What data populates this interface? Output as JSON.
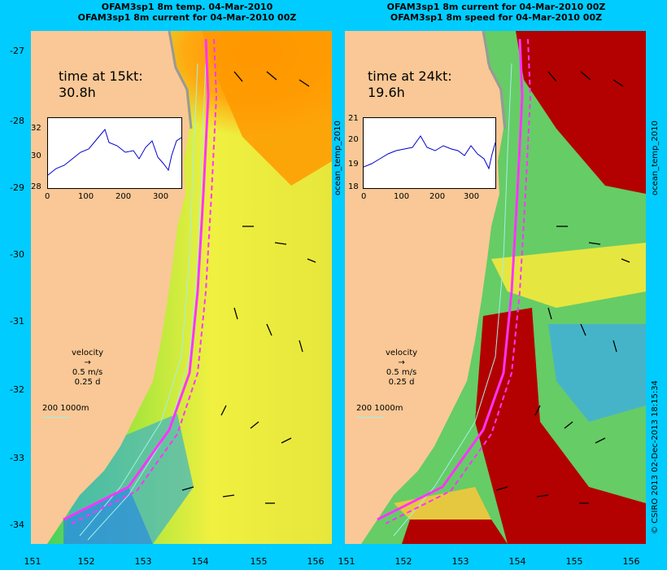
{
  "left": {
    "title_line1": "OFAM3sp1 8m temp. 04-Mar-2010",
    "title_line2": "OFAM3sp1 8m current for 04-Mar-2010 00Z",
    "time_label": "time at 15kt:",
    "time_value": "30.8h",
    "inset_y_ticks": [
      "32",
      "30",
      "28"
    ],
    "inset_x_ticks": [
      "0",
      "100",
      "200",
      "300"
    ],
    "velocity_label": "velocity",
    "velocity_speed": "0.5 m/s",
    "velocity_duration": "0.25 d",
    "depth_label": "200  1000m",
    "side_label": "ocean_temp_2010"
  },
  "right": {
    "title_line1": "OFAM3sp1 8m current for 04-Mar-2010 00Z",
    "title_line2": "OFAM3sp1 8m speed for 04-Mar-2010 00Z",
    "time_label": "time at 24kt:",
    "time_value": "19.6h",
    "inset_y_ticks": [
      "21",
      "20",
      "19",
      "18"
    ],
    "inset_x_ticks": [
      "0",
      "100",
      "200",
      "300"
    ],
    "velocity_label": "velocity",
    "velocity_speed": "0.5 m/s",
    "velocity_duration": "0.25 d",
    "depth_label": "200  1000m",
    "side_label": "ocean_temp_2010"
  },
  "y_ticks": [
    "-27",
    "-28",
    "-29",
    "-30",
    "-31",
    "-32",
    "-33",
    "-34"
  ],
  "x_ticks": [
    "151",
    "152",
    "153",
    "154",
    "155",
    "156"
  ],
  "credit": "© CSIRO 2013   02-Dec-2013 18:15:34",
  "colors": {
    "background": "#00ccff",
    "land": "#f9c896",
    "route": "#ff33ff",
    "contour": "#a0f0e8"
  }
}
